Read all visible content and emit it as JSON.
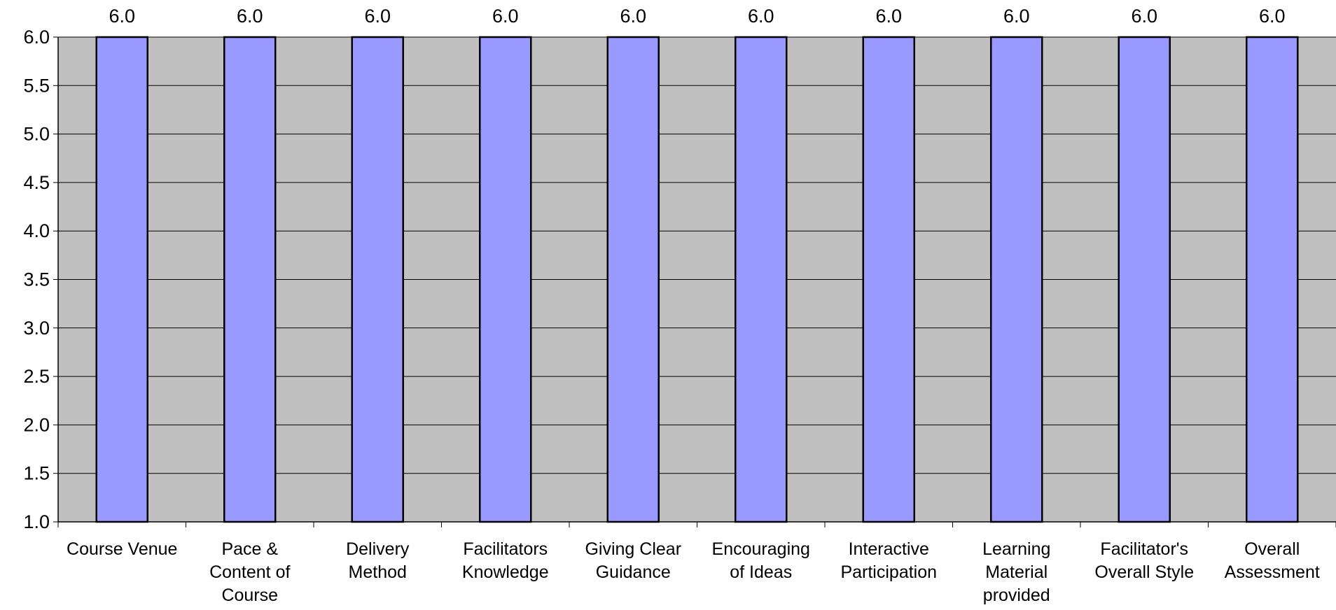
{
  "chart_data": {
    "type": "bar",
    "categories": [
      [
        "Course Venue"
      ],
      [
        "Pace &",
        "Content of",
        "Course"
      ],
      [
        "Delivery",
        "Method"
      ],
      [
        "Facilitators",
        "Knowledge"
      ],
      [
        "Giving Clear",
        "Guidance"
      ],
      [
        "Encouraging",
        "of Ideas"
      ],
      [
        "Interactive",
        "Participation"
      ],
      [
        "Learning",
        "Material",
        "provided"
      ],
      [
        "Facilitator's",
        "Overall Style"
      ],
      [
        "Overall",
        "Assessment"
      ]
    ],
    "values": [
      6.0,
      6.0,
      6.0,
      6.0,
      6.0,
      6.0,
      6.0,
      6.0,
      6.0,
      6.0
    ],
    "data_labels": [
      "6.0",
      "6.0",
      "6.0",
      "6.0",
      "6.0",
      "6.0",
      "6.0",
      "6.0",
      "6.0",
      "6.0"
    ],
    "title": "",
    "xlabel": "",
    "ylabel": "",
    "ylim": [
      1.0,
      6.0
    ],
    "y_ticks": [
      "1.0",
      "1.5",
      "2.0",
      "2.5",
      "3.0",
      "3.5",
      "4.0",
      "4.5",
      "5.0",
      "5.5",
      "6.0"
    ],
    "grid": true,
    "legend": "none",
    "colors": {
      "bar_fill": "#9999ff",
      "bar_stroke": "#000000",
      "plot_background": "#c0c0c0",
      "gridline": "#000000",
      "text": "#000000"
    }
  }
}
